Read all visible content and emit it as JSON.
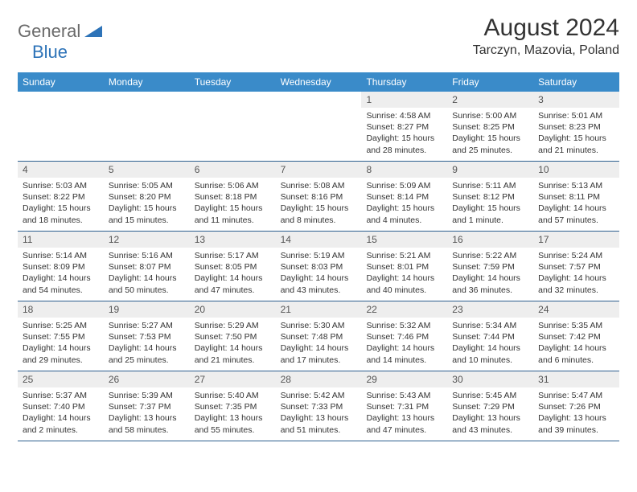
{
  "logo": {
    "text_general": "General",
    "text_blue": "Blue"
  },
  "title": "August 2024",
  "location": "Tarczyn, Mazovia, Poland",
  "colors": {
    "header_bg": "#3a8bc9",
    "header_text": "#ffffff",
    "daynum_bg": "#eeeeee",
    "daynum_text": "#555555",
    "body_text": "#333333",
    "row_border": "#2d5f8f",
    "logo_gray": "#6a6a6a",
    "logo_blue": "#2d73b8"
  },
  "day_names": [
    "Sunday",
    "Monday",
    "Tuesday",
    "Wednesday",
    "Thursday",
    "Friday",
    "Saturday"
  ],
  "weeks": [
    [
      null,
      null,
      null,
      null,
      {
        "n": "1",
        "sr": "4:58 AM",
        "ss": "8:27 PM",
        "dl": "15 hours and 28 minutes."
      },
      {
        "n": "2",
        "sr": "5:00 AM",
        "ss": "8:25 PM",
        "dl": "15 hours and 25 minutes."
      },
      {
        "n": "3",
        "sr": "5:01 AM",
        "ss": "8:23 PM",
        "dl": "15 hours and 21 minutes."
      }
    ],
    [
      {
        "n": "4",
        "sr": "5:03 AM",
        "ss": "8:22 PM",
        "dl": "15 hours and 18 minutes."
      },
      {
        "n": "5",
        "sr": "5:05 AM",
        "ss": "8:20 PM",
        "dl": "15 hours and 15 minutes."
      },
      {
        "n": "6",
        "sr": "5:06 AM",
        "ss": "8:18 PM",
        "dl": "15 hours and 11 minutes."
      },
      {
        "n": "7",
        "sr": "5:08 AM",
        "ss": "8:16 PM",
        "dl": "15 hours and 8 minutes."
      },
      {
        "n": "8",
        "sr": "5:09 AM",
        "ss": "8:14 PM",
        "dl": "15 hours and 4 minutes."
      },
      {
        "n": "9",
        "sr": "5:11 AM",
        "ss": "8:12 PM",
        "dl": "15 hours and 1 minute."
      },
      {
        "n": "10",
        "sr": "5:13 AM",
        "ss": "8:11 PM",
        "dl": "14 hours and 57 minutes."
      }
    ],
    [
      {
        "n": "11",
        "sr": "5:14 AM",
        "ss": "8:09 PM",
        "dl": "14 hours and 54 minutes."
      },
      {
        "n": "12",
        "sr": "5:16 AM",
        "ss": "8:07 PM",
        "dl": "14 hours and 50 minutes."
      },
      {
        "n": "13",
        "sr": "5:17 AM",
        "ss": "8:05 PM",
        "dl": "14 hours and 47 minutes."
      },
      {
        "n": "14",
        "sr": "5:19 AM",
        "ss": "8:03 PM",
        "dl": "14 hours and 43 minutes."
      },
      {
        "n": "15",
        "sr": "5:21 AM",
        "ss": "8:01 PM",
        "dl": "14 hours and 40 minutes."
      },
      {
        "n": "16",
        "sr": "5:22 AM",
        "ss": "7:59 PM",
        "dl": "14 hours and 36 minutes."
      },
      {
        "n": "17",
        "sr": "5:24 AM",
        "ss": "7:57 PM",
        "dl": "14 hours and 32 minutes."
      }
    ],
    [
      {
        "n": "18",
        "sr": "5:25 AM",
        "ss": "7:55 PM",
        "dl": "14 hours and 29 minutes."
      },
      {
        "n": "19",
        "sr": "5:27 AM",
        "ss": "7:53 PM",
        "dl": "14 hours and 25 minutes."
      },
      {
        "n": "20",
        "sr": "5:29 AM",
        "ss": "7:50 PM",
        "dl": "14 hours and 21 minutes."
      },
      {
        "n": "21",
        "sr": "5:30 AM",
        "ss": "7:48 PM",
        "dl": "14 hours and 17 minutes."
      },
      {
        "n": "22",
        "sr": "5:32 AM",
        "ss": "7:46 PM",
        "dl": "14 hours and 14 minutes."
      },
      {
        "n": "23",
        "sr": "5:34 AM",
        "ss": "7:44 PM",
        "dl": "14 hours and 10 minutes."
      },
      {
        "n": "24",
        "sr": "5:35 AM",
        "ss": "7:42 PM",
        "dl": "14 hours and 6 minutes."
      }
    ],
    [
      {
        "n": "25",
        "sr": "5:37 AM",
        "ss": "7:40 PM",
        "dl": "14 hours and 2 minutes."
      },
      {
        "n": "26",
        "sr": "5:39 AM",
        "ss": "7:37 PM",
        "dl": "13 hours and 58 minutes."
      },
      {
        "n": "27",
        "sr": "5:40 AM",
        "ss": "7:35 PM",
        "dl": "13 hours and 55 minutes."
      },
      {
        "n": "28",
        "sr": "5:42 AM",
        "ss": "7:33 PM",
        "dl": "13 hours and 51 minutes."
      },
      {
        "n": "29",
        "sr": "5:43 AM",
        "ss": "7:31 PM",
        "dl": "13 hours and 47 minutes."
      },
      {
        "n": "30",
        "sr": "5:45 AM",
        "ss": "7:29 PM",
        "dl": "13 hours and 43 minutes."
      },
      {
        "n": "31",
        "sr": "5:47 AM",
        "ss": "7:26 PM",
        "dl": "13 hours and 39 minutes."
      }
    ]
  ],
  "labels": {
    "sunrise": "Sunrise: ",
    "sunset": "Sunset: ",
    "daylight": "Daylight: "
  }
}
